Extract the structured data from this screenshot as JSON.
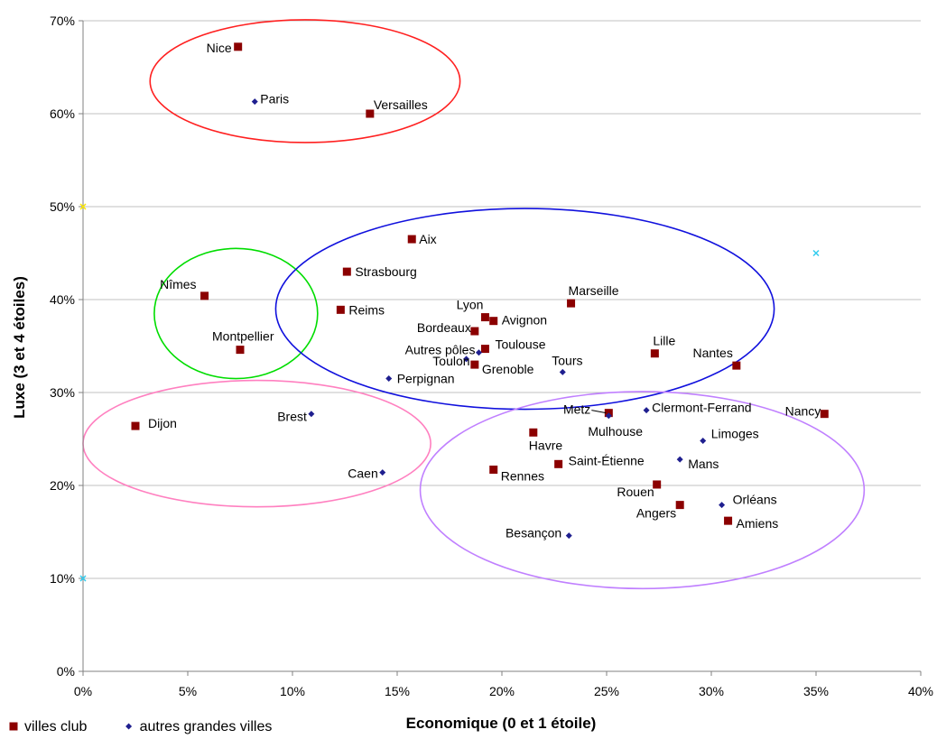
{
  "chart_data": {
    "type": "scatter",
    "title": "",
    "xlabel": "Economique (0 et 1 étoile)",
    "ylabel": "Luxe (3 et 4 étoiles)",
    "xlim": [
      0,
      40
    ],
    "ylim": [
      0,
      70
    ],
    "x_ticks": [
      "0%",
      "5%",
      "10%",
      "15%",
      "20%",
      "25%",
      "30%",
      "35%",
      "40%"
    ],
    "y_ticks": [
      "0%",
      "10%",
      "20%",
      "30%",
      "40%",
      "50%",
      "60%",
      "70%"
    ],
    "grid": "horizontal",
    "legend_position": "bottom-left",
    "series": [
      {
        "name": "villes club",
        "marker": "square",
        "color": "#8B0000",
        "points": [
          {
            "label": "Nice",
            "x": 7.4,
            "y": 67.2
          },
          {
            "label": "Versailles",
            "x": 13.7,
            "y": 60.0
          },
          {
            "label": "Aix",
            "x": 15.7,
            "y": 46.5
          },
          {
            "label": "Strasbourg",
            "x": 12.6,
            "y": 43.0
          },
          {
            "label": "Nîmes",
            "x": 5.8,
            "y": 40.4
          },
          {
            "label": "Reims",
            "x": 12.3,
            "y": 38.9
          },
          {
            "label": "Marseille",
            "x": 23.3,
            "y": 39.6
          },
          {
            "label": "Lyon",
            "x": 19.2,
            "y": 38.1
          },
          {
            "label": "Avignon",
            "x": 19.6,
            "y": 37.7
          },
          {
            "label": "Bordeaux",
            "x": 18.7,
            "y": 36.6
          },
          {
            "label": "Montpellier",
            "x": 7.5,
            "y": 34.6
          },
          {
            "label": "Toulouse",
            "x": 19.2,
            "y": 34.7
          },
          {
            "label": "Lille",
            "x": 27.3,
            "y": 34.2
          },
          {
            "label": "Grenoble",
            "x": 18.7,
            "y": 33.0
          },
          {
            "label": "Nantes",
            "x": 31.2,
            "y": 32.9
          },
          {
            "label": "Metz",
            "x": 25.1,
            "y": 27.8
          },
          {
            "label": "Nancy",
            "x": 35.4,
            "y": 27.7
          },
          {
            "label": "Dijon",
            "x": 2.5,
            "y": 26.4
          },
          {
            "label": "Havre",
            "x": 21.5,
            "y": 25.7
          },
          {
            "label": "Saint-Étienne",
            "x": 22.7,
            "y": 22.3
          },
          {
            "label": "Rennes",
            "x": 19.6,
            "y": 21.7
          },
          {
            "label": "Rouen",
            "x": 27.4,
            "y": 20.1
          },
          {
            "label": "Angers",
            "x": 28.5,
            "y": 17.9
          },
          {
            "label": "Amiens",
            "x": 30.8,
            "y": 16.2
          }
        ]
      },
      {
        "name": "autres grandes villes",
        "marker": "diamond",
        "color": "#1F1F8F",
        "points": [
          {
            "label": "Paris",
            "x": 8.2,
            "y": 61.3
          },
          {
            "label": "Autres pôles",
            "x": 18.9,
            "y": 34.3
          },
          {
            "label": "Toulon",
            "x": 18.3,
            "y": 33.6
          },
          {
            "label": "Perpignan",
            "x": 14.6,
            "y": 31.5
          },
          {
            "label": "Tours",
            "x": 22.9,
            "y": 32.2
          },
          {
            "label": "Mulhouse",
            "x": 25.1,
            "y": 27.5
          },
          {
            "label": "Clermont-Ferrand",
            "x": 26.9,
            "y": 28.1
          },
          {
            "label": "Brest",
            "x": 10.9,
            "y": 27.7
          },
          {
            "label": "Limoges",
            "x": 29.6,
            "y": 24.8
          },
          {
            "label": "Mans",
            "x": 28.5,
            "y": 22.8
          },
          {
            "label": "Caen",
            "x": 14.3,
            "y": 21.4
          },
          {
            "label": "Orléans",
            "x": 30.5,
            "y": 17.9
          },
          {
            "label": "Besançon",
            "x": 23.2,
            "y": 14.6
          }
        ]
      }
    ],
    "extra_markers": [
      {
        "x": 0,
        "y": 50,
        "color": "#FFE800"
      },
      {
        "x": 35,
        "y": 45,
        "color": "#33CCEE"
      },
      {
        "x": 0,
        "y": 10,
        "color": "#33CCEE"
      }
    ],
    "clusters": [
      {
        "color": "#FF2020",
        "cx": 10.6,
        "cy": 63.5,
        "rx": 7.4,
        "ry": 6.6
      },
      {
        "color": "#00DD00",
        "cx": 7.3,
        "cy": 38.5,
        "rx": 3.9,
        "ry": 7.0
      },
      {
        "color": "#1010DD",
        "cx": 21.1,
        "cy": 39.0,
        "rx": 11.9,
        "ry": 10.8
      },
      {
        "color": "#FF80C0",
        "cx": 8.3,
        "cy": 24.5,
        "rx": 8.3,
        "ry": 6.8
      },
      {
        "color": "#C080FF",
        "cx": 26.7,
        "cy": 19.5,
        "rx": 10.6,
        "ry": 10.6
      }
    ],
    "legend": [
      {
        "label": "villes club",
        "marker": "square",
        "color": "#8B0000"
      },
      {
        "label": "autres grandes villes",
        "marker": "diamond",
        "color": "#1F1F8F"
      }
    ]
  }
}
